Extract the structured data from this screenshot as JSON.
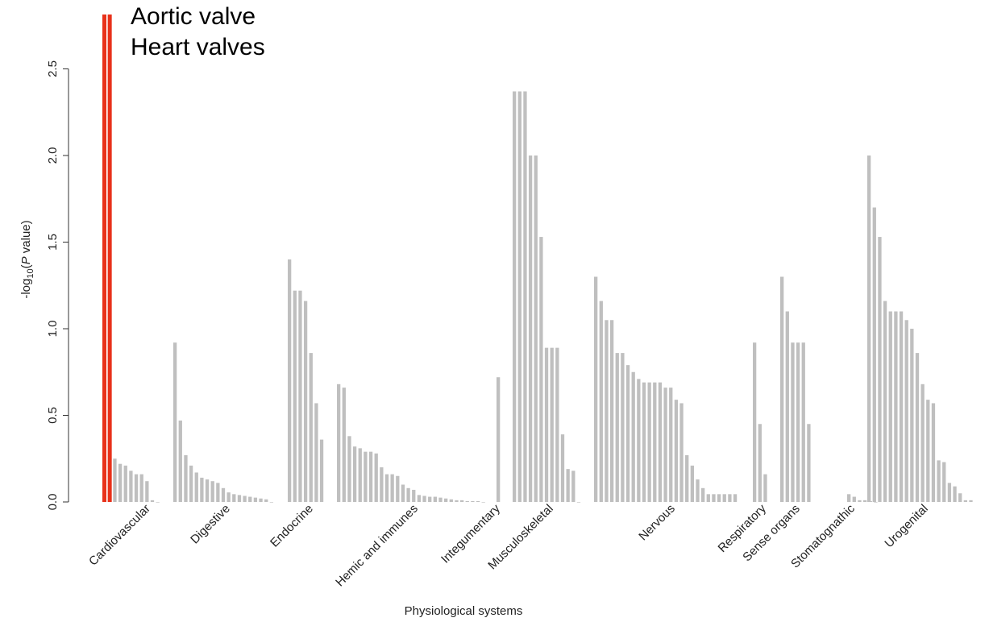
{
  "chart_data": {
    "type": "bar",
    "xlabel": "Physiological systems",
    "ylabel_prefix": "-log",
    "ylabel_sub": "10",
    "ylabel_open": "(",
    "ylabel_italic": "P",
    "ylabel_suffix": " value)",
    "ylim": [
      0,
      2.8
    ],
    "yticks": [
      0.0,
      0.5,
      1.0,
      1.5,
      2.0,
      2.5
    ],
    "ytick_labels": [
      "0.0",
      "0.5",
      "1.0",
      "1.5",
      "2.0",
      "2.5"
    ],
    "grid": false,
    "bar_color": "#bfbfbf",
    "highlight_color": "#e8311a",
    "annotations": [
      "Aortic valve",
      "Heart valves"
    ],
    "groups": [
      {
        "name": "Cardiovascular",
        "values": [
          2.8,
          2.8,
          0.25,
          0.22,
          0.21,
          0.18,
          0.16,
          0.16,
          0.12,
          0.01,
          0.0
        ],
        "highlight": [
          0,
          1
        ]
      },
      {
        "name": "Digestive",
        "values": [
          0.92,
          0.47,
          0.27,
          0.21,
          0.17,
          0.14,
          0.13,
          0.12,
          0.11,
          0.08,
          0.055,
          0.045,
          0.04,
          0.035,
          0.03,
          0.025,
          0.02,
          0.015,
          0.0
        ],
        "highlight": []
      },
      {
        "name": "Endocrine",
        "values": [
          1.4,
          1.22,
          1.22,
          1.16,
          0.86,
          0.57,
          0.36
        ],
        "highlight": []
      },
      {
        "name": "Hemic and immunes",
        "values": [
          0.68,
          0.66,
          0.38,
          0.32,
          0.31,
          0.29,
          0.29,
          0.28,
          0.2,
          0.16,
          0.16,
          0.15,
          0.1,
          0.08,
          0.07,
          0.04,
          0.035,
          0.03,
          0.03,
          0.025,
          0.02,
          0.015,
          0.01,
          0.01,
          0.005,
          0.005,
          0.005,
          0.0
        ],
        "highlight": []
      },
      {
        "name": "Integumentary",
        "values": [
          0.72
        ],
        "highlight": []
      },
      {
        "name": "Musculoskeletal",
        "values": [
          2.37,
          2.37,
          2.37,
          2.0,
          2.0,
          1.53,
          0.89,
          0.89,
          0.89,
          0.39,
          0.19,
          0.18,
          0.0
        ],
        "highlight": []
      },
      {
        "name": "Nervous",
        "values": [
          1.3,
          1.16,
          1.05,
          1.05,
          0.86,
          0.86,
          0.79,
          0.75,
          0.71,
          0.69,
          0.69,
          0.69,
          0.69,
          0.66,
          0.66,
          0.59,
          0.57,
          0.27,
          0.21,
          0.13,
          0.08,
          0.045,
          0.045,
          0.045,
          0.045,
          0.045,
          0.045
        ],
        "highlight": []
      },
      {
        "name": "Respiratory",
        "values": [
          0.92,
          0.45,
          0.16
        ],
        "highlight": []
      },
      {
        "name": "Sense organs",
        "values": [
          1.3,
          1.1,
          0.92,
          0.92,
          0.92,
          0.45
        ],
        "highlight": []
      },
      {
        "name": "Stomatognathic",
        "values": [
          0.045,
          0.03,
          0.01,
          0.01,
          0.005,
          0.0
        ],
        "highlight": []
      },
      {
        "name": "Urogenital",
        "values": [
          2.0,
          1.7,
          1.53,
          1.16,
          1.1,
          1.1,
          1.1,
          1.05,
          1.0,
          0.86,
          0.68,
          0.59,
          0.57,
          0.24,
          0.23,
          0.11,
          0.09,
          0.05,
          0.01,
          0.01
        ],
        "highlight": []
      }
    ]
  }
}
